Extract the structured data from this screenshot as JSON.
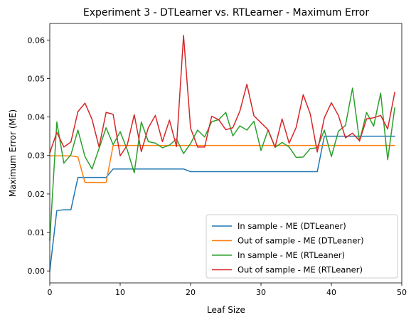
{
  "chart_data": {
    "type": "line",
    "title": "Experiment 3 - DTLearner vs. RTLearner - Maximum Error",
    "xlabel": "Leaf Size",
    "ylabel": "Maximum Error (ME)",
    "xlim": [
      0,
      50
    ],
    "ylim": [
      -0.0031,
      0.0643
    ],
    "xticks": [
      0,
      10,
      20,
      30,
      40,
      50
    ],
    "yticks": [
      0.0,
      0.01,
      0.02,
      0.03,
      0.04,
      0.05,
      0.06
    ],
    "ytick_labels": [
      "0.00",
      "0.01",
      "0.02",
      "0.03",
      "0.04",
      "0.05",
      "0.06"
    ],
    "grid": false,
    "legend_position": "lower-right",
    "x": [
      0,
      1,
      2,
      3,
      4,
      5,
      6,
      7,
      8,
      9,
      10,
      11,
      12,
      13,
      14,
      15,
      16,
      17,
      18,
      19,
      20,
      21,
      22,
      23,
      24,
      25,
      26,
      27,
      28,
      29,
      30,
      31,
      32,
      33,
      34,
      35,
      36,
      37,
      38,
      39,
      40,
      41,
      42,
      43,
      44,
      45,
      46,
      47,
      48,
      49
    ],
    "series": [
      {
        "name": "In sample - ME (DTLeaner)",
        "color": "#1f77b4",
        "values": [
          0.0,
          0.0157,
          0.0159,
          0.0159,
          0.0243,
          0.0243,
          0.0243,
          0.0243,
          0.0243,
          0.0265,
          0.0265,
          0.0265,
          0.0265,
          0.0265,
          0.0265,
          0.0265,
          0.0265,
          0.0265,
          0.0265,
          0.0265,
          0.0258,
          0.0258,
          0.0258,
          0.0258,
          0.0258,
          0.0258,
          0.0258,
          0.0258,
          0.0258,
          0.0258,
          0.0258,
          0.0258,
          0.0258,
          0.0258,
          0.0258,
          0.0258,
          0.0258,
          0.0258,
          0.0258,
          0.035,
          0.035,
          0.035,
          0.035,
          0.035,
          0.035,
          0.035,
          0.035,
          0.035,
          0.035,
          0.035
        ]
      },
      {
        "name": "Out of sample - ME (DTLeaner)",
        "color": "#ff7f0e",
        "values": [
          0.0299,
          0.0299,
          0.0299,
          0.0299,
          0.0296,
          0.023,
          0.023,
          0.023,
          0.023,
          0.0326,
          0.0326,
          0.0326,
          0.0326,
          0.0326,
          0.0326,
          0.0326,
          0.0326,
          0.0326,
          0.0326,
          0.0326,
          0.0326,
          0.0326,
          0.0326,
          0.0326,
          0.0326,
          0.0326,
          0.0326,
          0.0326,
          0.0326,
          0.0326,
          0.0326,
          0.0326,
          0.0326,
          0.0326,
          0.0326,
          0.0326,
          0.0326,
          0.0326,
          0.0326,
          0.0326,
          0.0326,
          0.0326,
          0.0326,
          0.0326,
          0.0326,
          0.0326,
          0.0326,
          0.0326,
          0.0326,
          0.0326
        ]
      },
      {
        "name": "In sample - ME (RTLeaner)",
        "color": "#2ca02c",
        "values": [
          0.008,
          0.0387,
          0.028,
          0.0302,
          0.0366,
          0.0297,
          0.0265,
          0.0318,
          0.0372,
          0.0328,
          0.0362,
          0.0315,
          0.0255,
          0.0387,
          0.0336,
          0.0332,
          0.032,
          0.0327,
          0.0343,
          0.0305,
          0.0331,
          0.0366,
          0.0348,
          0.0388,
          0.0393,
          0.0412,
          0.0351,
          0.0377,
          0.0366,
          0.0389,
          0.0313,
          0.0366,
          0.0321,
          0.0334,
          0.0322,
          0.0295,
          0.0296,
          0.0318,
          0.032,
          0.0366,
          0.0297,
          0.0363,
          0.0378,
          0.0475,
          0.0337,
          0.0412,
          0.0376,
          0.0462,
          0.0289,
          0.0424
        ]
      },
      {
        "name": "Out of sample - ME (RTLeaner)",
        "color": "#d62728",
        "values": [
          0.0307,
          0.036,
          0.0322,
          0.0335,
          0.0414,
          0.0436,
          0.0394,
          0.0322,
          0.0412,
          0.0407,
          0.0299,
          0.0327,
          0.0406,
          0.031,
          0.0372,
          0.0404,
          0.0336,
          0.0392,
          0.0323,
          0.0612,
          0.0371,
          0.0322,
          0.0322,
          0.0402,
          0.0393,
          0.0367,
          0.0372,
          0.0415,
          0.0485,
          0.0403,
          0.0385,
          0.0367,
          0.0322,
          0.0395,
          0.0332,
          0.0373,
          0.0458,
          0.0408,
          0.0309,
          0.0398,
          0.0437,
          0.0404,
          0.0346,
          0.0358,
          0.0338,
          0.0395,
          0.0398,
          0.0404,
          0.0369,
          0.0464
        ]
      }
    ]
  }
}
